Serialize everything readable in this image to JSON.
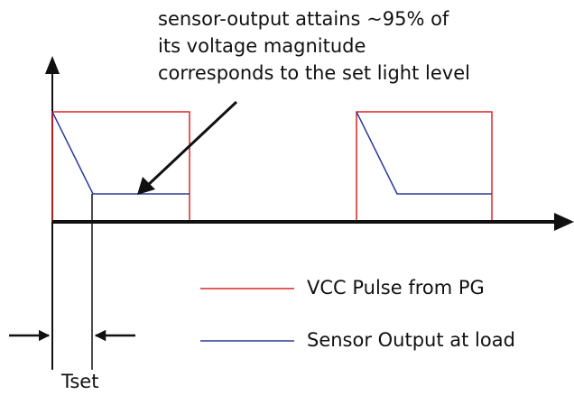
{
  "annotation": {
    "lines": [
      "sensor-output attains ~95% of",
      "its voltage magnitude",
      "corresponds to the set light level"
    ]
  },
  "legend": [
    {
      "label": "VCC Pulse from PG"
    },
    {
      "label": "Sensor Output at load"
    }
  ],
  "tset_label": "Tset"
}
